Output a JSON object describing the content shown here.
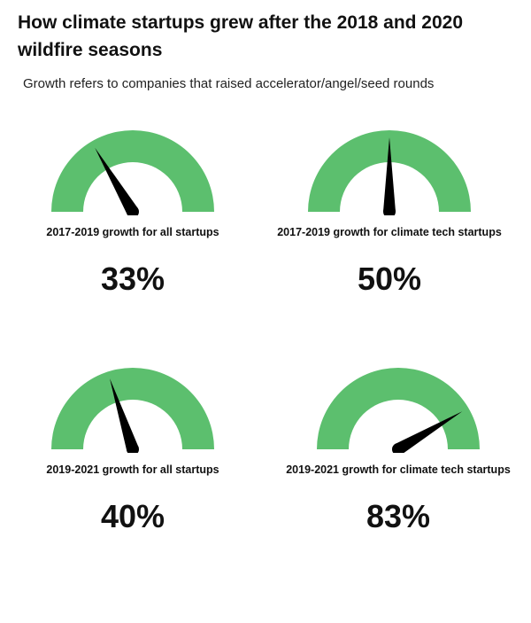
{
  "title": "How climate startups grew after the 2018 and 2020 wildfire seasons",
  "subtitle": "Growth refers to companies that raised accelerator/angel/seed rounds",
  "colors": {
    "gauge_arc": "#5cbf6e",
    "needle": "#000000"
  },
  "chart_data": {
    "type": "gauge",
    "range": [
      0,
      100
    ],
    "gauges": [
      {
        "label": "2017-2019 growth for all startups",
        "value": 33,
        "value_label": "33%"
      },
      {
        "label": "2017-2019 growth for climate tech startups",
        "value": 50,
        "value_label": "50%"
      },
      {
        "label": "2019-2021 growth for all startups",
        "value": 40,
        "value_label": "40%"
      },
      {
        "label": "2019-2021 growth for climate tech startups",
        "value": 83,
        "value_label": "83%"
      }
    ]
  }
}
